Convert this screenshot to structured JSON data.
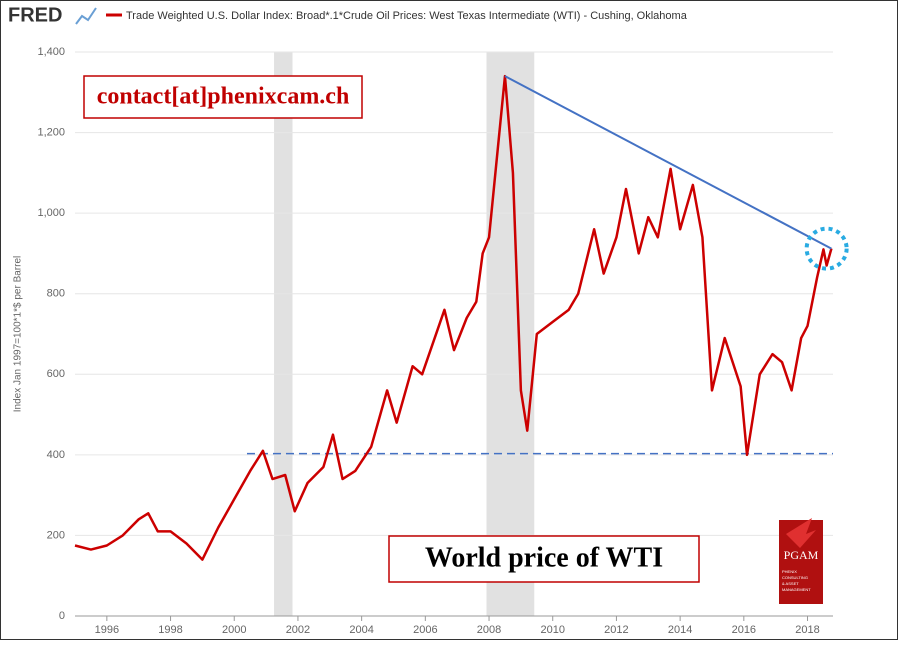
{
  "chart_data": {
    "type": "line",
    "brand": "FRED",
    "y_axis_label": "Index Jan 1997=100*1*$ per Barrel",
    "series": [
      {
        "name": "Trade Weighted U.S. Dollar Index: Broad*.1*Crude Oil Prices: West Texas Intermediate (WTI) - Cushing, Oklahoma",
        "color": "#cc0000",
        "x": [
          1995.0,
          1995.5,
          1996.0,
          1996.5,
          1997.0,
          1997.3,
          1997.6,
          1998.0,
          1998.5,
          1999.0,
          1999.5,
          2000.0,
          2000.5,
          2000.9,
          2001.2,
          2001.6,
          2001.9,
          2002.3,
          2002.8,
          2003.1,
          2003.4,
          2003.8,
          2004.3,
          2004.8,
          2005.1,
          2005.6,
          2005.9,
          2006.6,
          2006.9,
          2007.3,
          2007.6,
          2007.8,
          2008.0,
          2008.5,
          2008.75,
          2009.0,
          2009.2,
          2009.5,
          2010.0,
          2010.5,
          2010.8,
          2011.3,
          2011.6,
          2012.0,
          2012.3,
          2012.7,
          2013.0,
          2013.3,
          2013.7,
          2014.0,
          2014.4,
          2014.7,
          2015.0,
          2015.4,
          2015.9,
          2016.1,
          2016.5,
          2016.9,
          2017.2,
          2017.5,
          2017.8,
          2018.0,
          2018.3,
          2018.5,
          2018.6,
          2018.75
        ],
        "values": [
          175,
          165,
          175,
          200,
          240,
          255,
          210,
          210,
          180,
          140,
          220,
          290,
          360,
          410,
          340,
          350,
          260,
          330,
          370,
          450,
          340,
          360,
          420,
          560,
          480,
          620,
          600,
          760,
          660,
          740,
          780,
          900,
          940,
          1340,
          1100,
          560,
          460,
          700,
          730,
          760,
          800,
          960,
          850,
          940,
          1060,
          900,
          990,
          940,
          1110,
          960,
          1070,
          940,
          560,
          690,
          570,
          400,
          600,
          650,
          630,
          560,
          690,
          720,
          840,
          910,
          870,
          912
        ]
      }
    ],
    "xlim": [
      1995,
      2018.8
    ],
    "xticks": [
      1996,
      1998,
      2000,
      2002,
      2004,
      2006,
      2008,
      2010,
      2012,
      2014,
      2016,
      2018
    ],
    "ylim": [
      0,
      1400
    ],
    "yticks": [
      0,
      200,
      400,
      600,
      800,
      {
        "value": 1000,
        "label": "1,000"
      },
      {
        "value": 1200,
        "label": "1,200"
      },
      {
        "value": 1400,
        "label": "1,400"
      }
    ],
    "grid": true,
    "shaded_periods": [
      [
        2001.25,
        2001.83
      ],
      [
        2007.92,
        2009.42
      ]
    ],
    "trend_line": {
      "x": [
        2008.5,
        2018.75
      ],
      "y": [
        1340,
        912
      ],
      "color": "#4472c4"
    },
    "support_level": {
      "value": 403,
      "x": [
        2000.4,
        2018.8
      ],
      "color": "#4472c4"
    },
    "highlight": {
      "x": 2018.6,
      "y": 912,
      "color": "#29abe2"
    },
    "annotations": [
      "contact[at]phenixcam.ch",
      "World price of WTI"
    ],
    "logo": {
      "name": "PGAM",
      "tagline": [
        "PHENIX",
        "CONSULTING",
        "& ASSET",
        "MANAGEMENT"
      ]
    }
  }
}
